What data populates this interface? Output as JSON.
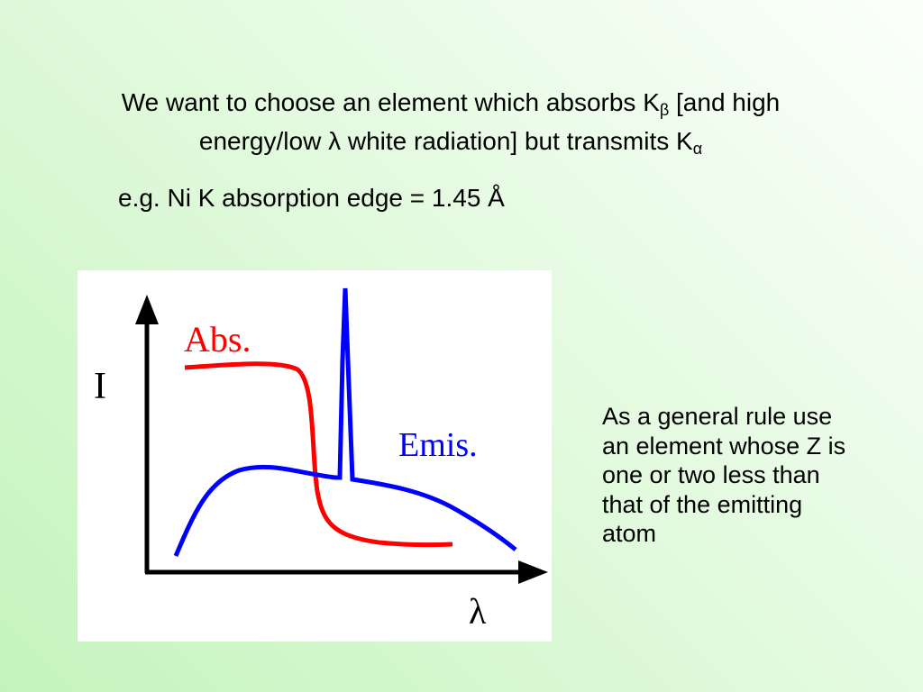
{
  "heading": {
    "parts": [
      "We want to choose an element which absorbs K",
      "β",
      " [and high energy/low ",
      "λ",
      " white radiation] but transmits K",
      "α"
    ]
  },
  "example": "e.g. Ni K absorption edge = 1.45 Å",
  "diagram": {
    "y_axis_label": "I",
    "x_axis_label": "λ",
    "absorption_label": "Abs.",
    "emission_label": "Emis."
  },
  "rule": "As a general rule use an element whose Z is one or two less than that of the emitting atom"
}
